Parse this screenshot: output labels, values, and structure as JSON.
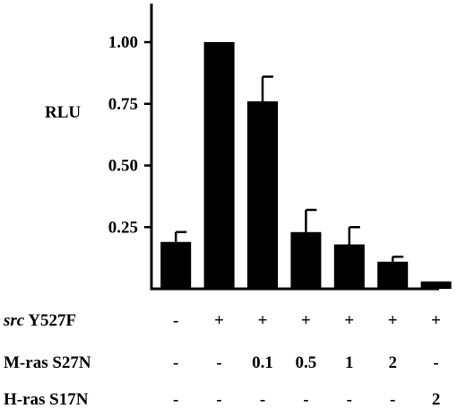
{
  "chart_data": {
    "type": "bar",
    "ylabel": "RLU",
    "ylim": [
      0,
      1.15
    ],
    "yticks": [
      "0.25",
      "0.50",
      "0.75",
      "1.00"
    ],
    "ytick_values": [
      0.25,
      0.5,
      0.75,
      1.0
    ],
    "values": [
      0.19,
      1.0,
      0.76,
      0.23,
      0.18,
      0.11,
      0.03
    ],
    "error_upper": [
      0.23,
      null,
      0.86,
      0.32,
      0.25,
      0.13,
      null
    ],
    "rows": [
      {
        "label_italic": "src",
        "label_rest": " Y527F",
        "values": [
          "-",
          "+",
          "+",
          "+",
          "+",
          "+",
          "+"
        ]
      },
      {
        "label_italic": "",
        "label_rest": "M-ras S27N",
        "values": [
          "-",
          "-",
          "0.1",
          "0.5",
          "1",
          "2",
          "-"
        ]
      },
      {
        "label_italic": "",
        "label_rest": "H-ras S17N",
        "values": [
          "-",
          "-",
          "-",
          "-",
          "-",
          "-",
          "2"
        ]
      }
    ],
    "colors": {
      "bar": "#000000",
      "axis": "#000000"
    }
  }
}
